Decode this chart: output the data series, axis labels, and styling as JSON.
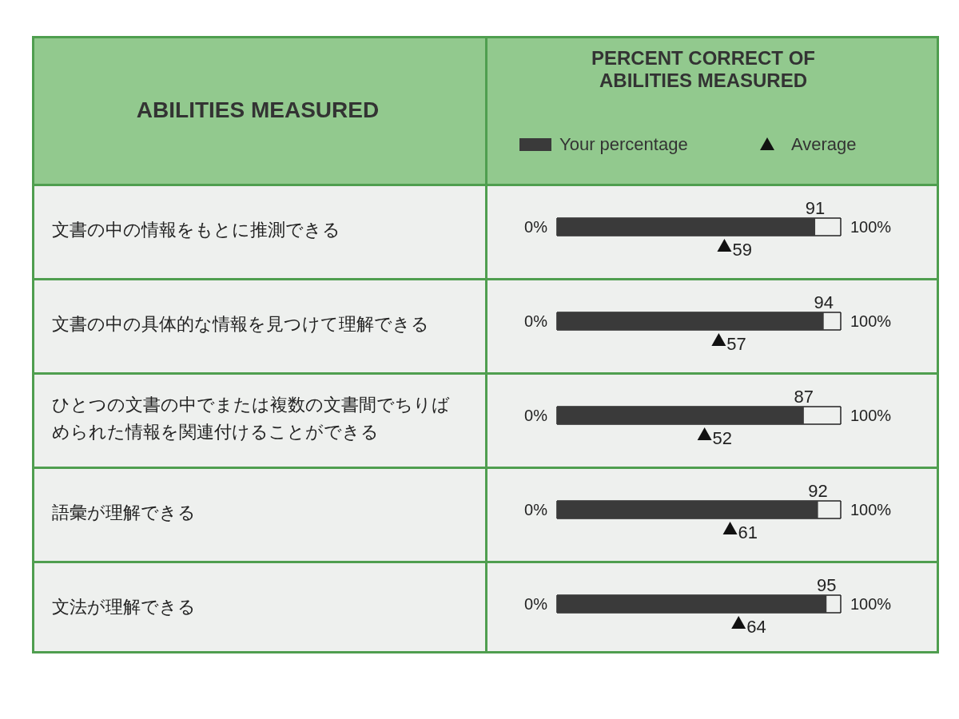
{
  "chart_data": {
    "type": "bar",
    "orientation": "horizontal",
    "title": "PERCENT CORRECT OF ABILITIES MEASURED",
    "ylabel": "ABILITIES MEASURED",
    "categories": [
      "文書の中の情報をもとに推測できる",
      "文書の中の具体的な情報を見つけて理解できる",
      "ひとつの文書の中でまたは複数の文書間でちりばめられた情報を関連付けることができる",
      "語彙が理解できる",
      "文法が理解できる"
    ],
    "series": [
      {
        "name": "Your percentage",
        "color": "#3a3a3a",
        "values": [
          91,
          94,
          87,
          92,
          95
        ]
      },
      {
        "name": "Average",
        "type": "scatter",
        "color": "#111111",
        "values": [
          59,
          57,
          52,
          61,
          64
        ]
      }
    ],
    "marker": "triangle",
    "xlim": [
      0,
      100
    ],
    "ref_lines": [
      {
        "axis": "x",
        "value": 0,
        "label": "0%",
        "color": "#222222"
      },
      {
        "axis": "x",
        "value": 100,
        "label": "100%",
        "color": "#222222"
      }
    ],
    "data_labels": true,
    "legend": "top"
  }
}
